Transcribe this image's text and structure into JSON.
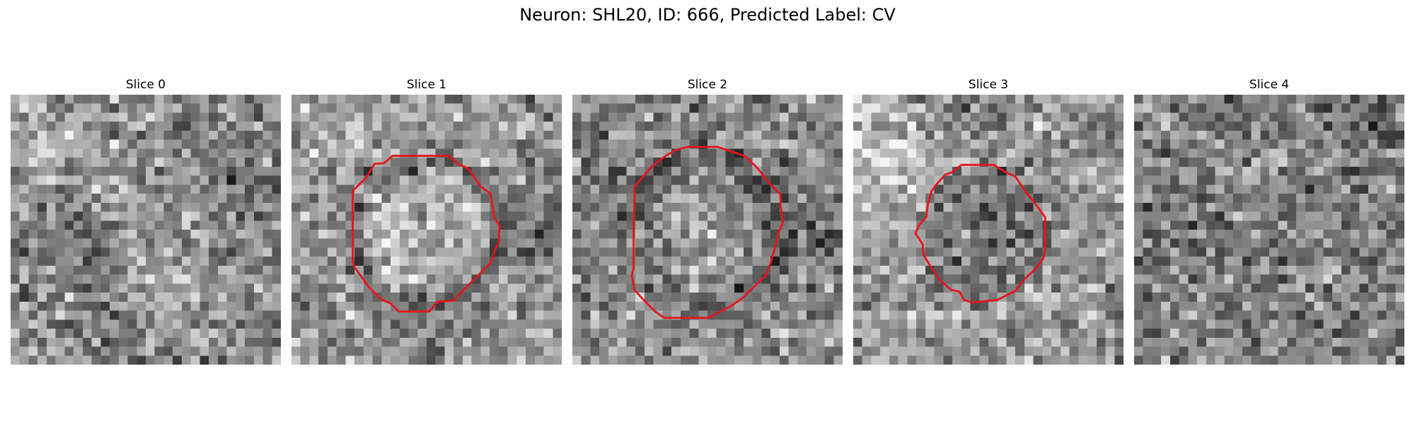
{
  "figure": {
    "title": "Neuron: SHL20, ID: 666, Predicted Label: CV",
    "contour_color": "#e8141c"
  },
  "panels": [
    {
      "label": "Slice 0",
      "has_contour": false,
      "base_brightness": 142
    },
    {
      "label": "Slice 1",
      "has_contour": true,
      "base_brightness": 150
    },
    {
      "label": "Slice 2",
      "has_contour": true,
      "base_brightness": 138
    },
    {
      "label": "Slice 3",
      "has_contour": true,
      "base_brightness": 152
    },
    {
      "label": "Slice 4",
      "has_contour": false,
      "base_brightness": 128
    }
  ]
}
